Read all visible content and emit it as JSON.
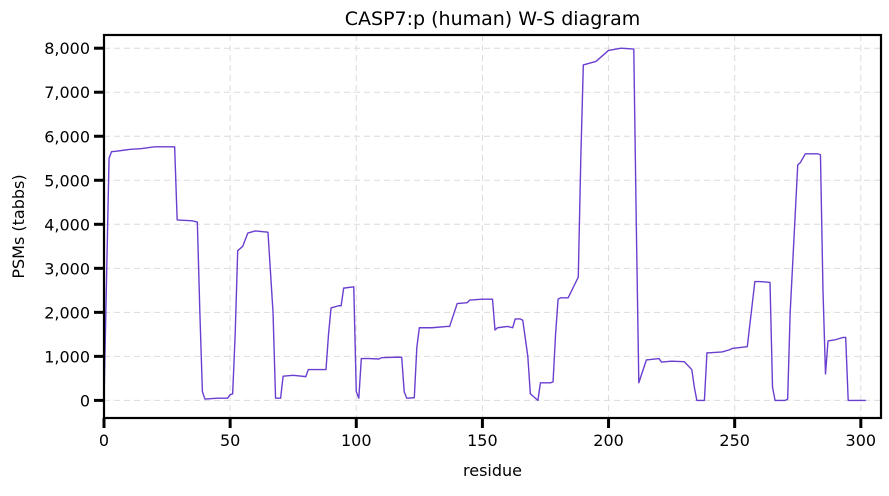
{
  "chart_data": {
    "type": "line",
    "title": "CASP7:p (human) W-S diagram",
    "xlabel": "residue",
    "ylabel": "PSMs (tabbs)",
    "xlim": [
      0,
      308
    ],
    "ylim": [
      -400,
      8300
    ],
    "x_ticks": [
      0,
      50,
      100,
      150,
      200,
      250,
      300
    ],
    "y_ticks": [
      0,
      1000,
      2000,
      3000,
      4000,
      5000,
      6000,
      7000,
      8000
    ],
    "y_tick_labels": [
      "0",
      "1,000",
      "2,000",
      "3,000",
      "4,000",
      "5,000",
      "6,000",
      "7,000",
      "8,000"
    ],
    "grid": true,
    "line_color": "#6a3fd0",
    "series": [
      {
        "x": [
          0,
          2,
          3,
          5,
          10,
          15,
          20,
          25,
          28,
          29,
          35,
          37,
          38,
          39,
          40,
          45,
          49,
          50,
          51,
          52,
          53,
          55,
          57,
          60,
          65,
          67,
          68,
          70,
          71,
          75,
          80,
          81,
          85,
          88,
          89,
          90,
          93,
          94,
          95,
          99,
          100,
          101,
          102,
          105,
          109,
          110,
          115,
          118,
          119,
          120,
          123,
          124,
          125,
          130,
          136,
          137,
          140,
          144,
          145,
          150,
          154,
          155,
          156,
          160,
          162,
          163,
          165,
          166,
          168,
          169,
          170,
          172,
          173,
          177,
          178,
          179,
          180,
          181,
          183,
          184,
          188,
          189,
          190,
          195,
          200,
          205,
          210,
          211,
          212,
          215,
          220,
          221,
          225,
          230,
          233,
          234,
          235,
          237,
          238,
          239,
          240,
          245,
          248,
          249,
          255,
          258,
          259,
          260,
          264,
          265,
          266,
          270,
          271,
          272,
          275,
          276,
          278,
          283,
          284,
          285,
          286,
          287,
          290,
          293,
          294,
          295,
          302
        ],
        "y": [
          0,
          5500,
          5650,
          5660,
          5700,
          5720,
          5760,
          5760,
          5760,
          4100,
          4080,
          4050,
          2000,
          200,
          30,
          50,
          50,
          130,
          150,
          1500,
          3400,
          3500,
          3800,
          3850,
          3820,
          2000,
          50,
          50,
          550,
          570,
          540,
          700,
          700,
          700,
          1500,
          2100,
          2150,
          2150,
          2550,
          2580,
          200,
          50,
          950,
          950,
          940,
          970,
          980,
          980,
          200,
          50,
          60,
          1200,
          1650,
          1650,
          1680,
          1680,
          2200,
          2220,
          2280,
          2300,
          2300,
          1600,
          1650,
          1680,
          1650,
          1850,
          1850,
          1820,
          1000,
          150,
          100,
          0,
          400,
          400,
          420,
          1500,
          2300,
          2330,
          2330,
          2330,
          2800,
          5500,
          7620,
          7700,
          7950,
          8000,
          7980,
          4000,
          400,
          920,
          950,
          870,
          890,
          880,
          700,
          300,
          0,
          0,
          0,
          1080,
          1080,
          1100,
          1150,
          1180,
          1220,
          2700,
          2700,
          2700,
          2680,
          300,
          0,
          0,
          30,
          2000,
          5350,
          5400,
          5600,
          5600,
          5580,
          2500,
          600,
          1350,
          1380,
          1430,
          1430,
          0,
          0
        ]
      }
    ]
  }
}
